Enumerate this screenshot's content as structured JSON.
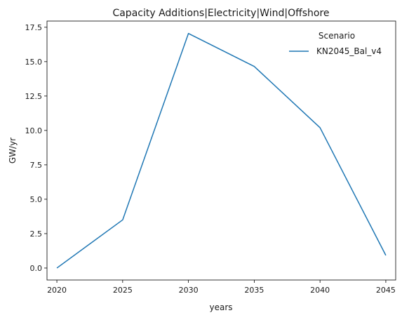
{
  "chart_data": {
    "type": "line",
    "title": "Capacity Additions|Electricity|Wind|Offshore",
    "xlabel": "years",
    "ylabel": "GW/yr",
    "x": [
      2020,
      2025,
      2030,
      2035,
      2040,
      2045
    ],
    "x_ticks": [
      "2020",
      "2025",
      "2030",
      "2035",
      "2040",
      "2045"
    ],
    "y_ticks": [
      "0.0",
      "2.5",
      "5.0",
      "7.5",
      "10.0",
      "12.5",
      "15.0",
      "17.5"
    ],
    "xlim": [
      2019.25,
      2045.75
    ],
    "ylim": [
      -0.87,
      17.95
    ],
    "grid": false,
    "legend": {
      "title": "Scenario",
      "placement": "upper-right"
    },
    "series": [
      {
        "name": "KN2045_Bal_v4",
        "color": "#1f77b4",
        "values": [
          0.0,
          3.5,
          17.05,
          14.65,
          10.2,
          0.92
        ]
      }
    ]
  }
}
